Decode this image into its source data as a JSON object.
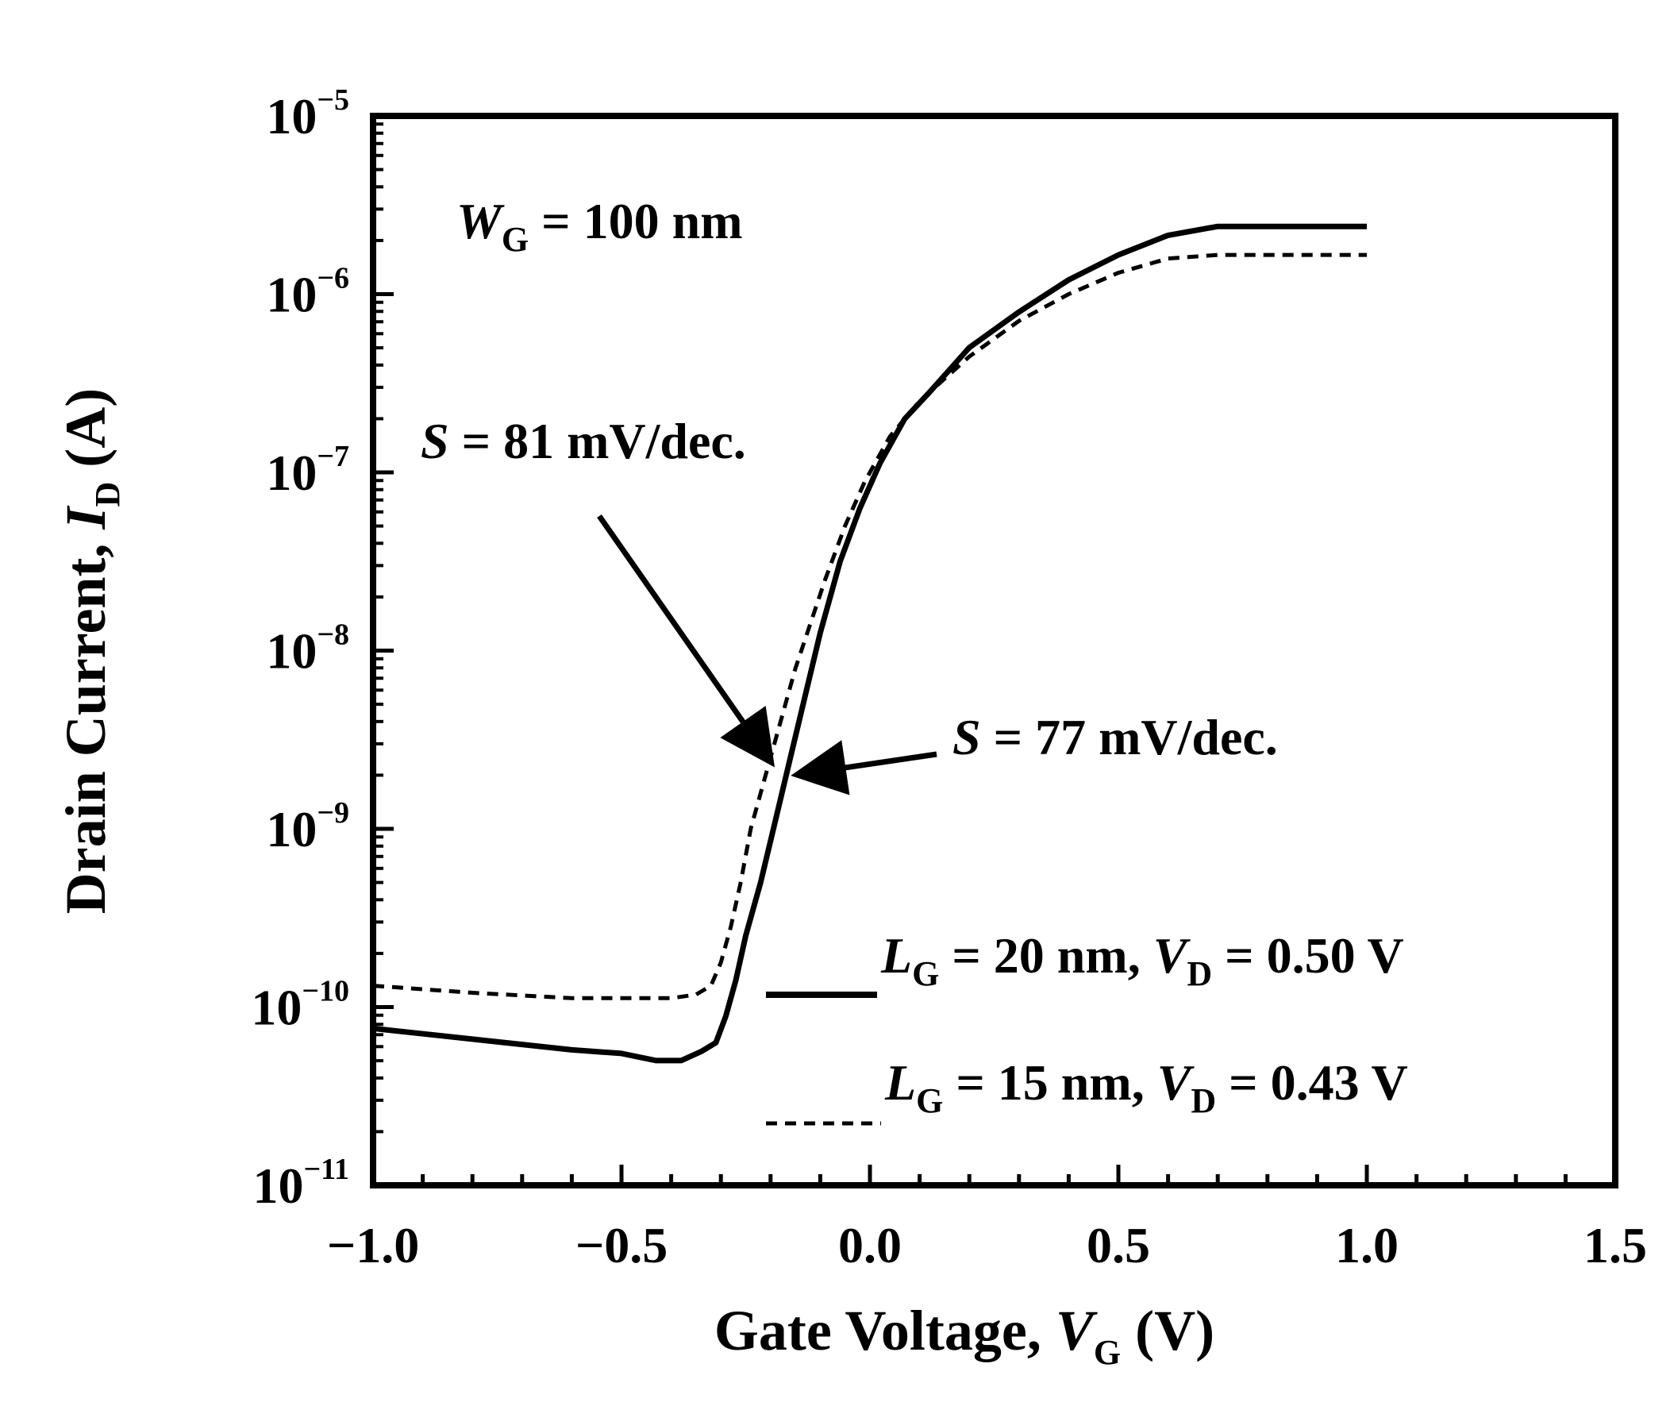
{
  "chart_data": {
    "type": "line",
    "title": "",
    "xlabel": {
      "main": "Gate Voltage, ",
      "var": "V",
      "sub": "G",
      "unit": " (V)"
    },
    "ylabel": {
      "main": "Drain Current, ",
      "var": "I",
      "sub": "D",
      "unit": " (A)"
    },
    "xlim": [
      -1.0,
      1.5
    ],
    "ylim_exponent": [
      -11,
      -5
    ],
    "y_scale": "log",
    "xticks": [
      "−1.0",
      "−0.5",
      "0.0",
      "0.5",
      "1.0",
      "1.5"
    ],
    "xtick_values": [
      -1.0,
      -0.5,
      0.0,
      0.5,
      1.0,
      1.5
    ],
    "yticks": [
      {
        "base": "10",
        "exp": "−11",
        "value": -11
      },
      {
        "base": "10",
        "exp": "−10",
        "value": -10
      },
      {
        "base": "10",
        "exp": "−9",
        "value": -9
      },
      {
        "base": "10",
        "exp": "−8",
        "value": -8
      },
      {
        "base": "10",
        "exp": "−7",
        "value": -7
      },
      {
        "base": "10",
        "exp": "−6",
        "value": -6
      },
      {
        "base": "10",
        "exp": "−5",
        "value": -5
      }
    ],
    "series": [
      {
        "legend": {
          "var": "L",
          "sub": "G",
          "mid": " = 20 nm, ",
          "var2": "V",
          "sub2": "D",
          "tail": " = 0.50 V"
        },
        "style": "solid",
        "x": [
          -1.0,
          -0.8,
          -0.6,
          -0.5,
          -0.43,
          -0.38,
          -0.34,
          -0.31,
          -0.29,
          -0.27,
          -0.25,
          -0.22,
          -0.19,
          -0.16,
          -0.13,
          -0.1,
          -0.06,
          -0.02,
          0.02,
          0.07,
          0.12,
          0.2,
          0.3,
          0.4,
          0.5,
          0.6,
          0.7,
          0.8,
          1.0
        ],
        "log10_y": [
          -10.12,
          -10.18,
          -10.24,
          -10.26,
          -10.3,
          -10.3,
          -10.25,
          -10.2,
          -10.05,
          -9.85,
          -9.6,
          -9.3,
          -8.95,
          -8.6,
          -8.25,
          -7.9,
          -7.5,
          -7.2,
          -6.95,
          -6.7,
          -6.55,
          -6.3,
          -6.1,
          -5.92,
          -5.78,
          -5.67,
          -5.62,
          -5.62,
          -5.62
        ]
      },
      {
        "legend": {
          "var": "L",
          "sub": "G",
          "mid": " = 15 nm, ",
          "var2": "V",
          "sub2": "D",
          "tail": " = 0.43 V"
        },
        "style": "dashed",
        "x": [
          -1.0,
          -0.8,
          -0.6,
          -0.4,
          -0.35,
          -0.32,
          -0.3,
          -0.28,
          -0.26,
          -0.24,
          -0.21,
          -0.18,
          -0.15,
          -0.12,
          -0.09,
          -0.05,
          -0.01,
          0.04,
          0.1,
          0.2,
          0.3,
          0.4,
          0.5,
          0.6,
          0.7,
          1.0
        ],
        "log10_y": [
          -9.88,
          -9.92,
          -9.95,
          -9.95,
          -9.93,
          -9.88,
          -9.75,
          -9.55,
          -9.3,
          -9.0,
          -8.7,
          -8.4,
          -8.1,
          -7.85,
          -7.6,
          -7.3,
          -7.05,
          -6.8,
          -6.6,
          -6.35,
          -6.15,
          -6.0,
          -5.88,
          -5.8,
          -5.78,
          -5.78
        ]
      }
    ],
    "annotations": [
      {
        "id": "wg",
        "var": "W",
        "sub": "G",
        "text": " = 100 nm"
      },
      {
        "id": "s81",
        "var": "S",
        "text": " = 81 mV/dec."
      },
      {
        "id": "s77",
        "var": "S",
        "text": " = 77 mV/dec."
      }
    ],
    "grid": false,
    "legend_position": "bottom-right"
  }
}
